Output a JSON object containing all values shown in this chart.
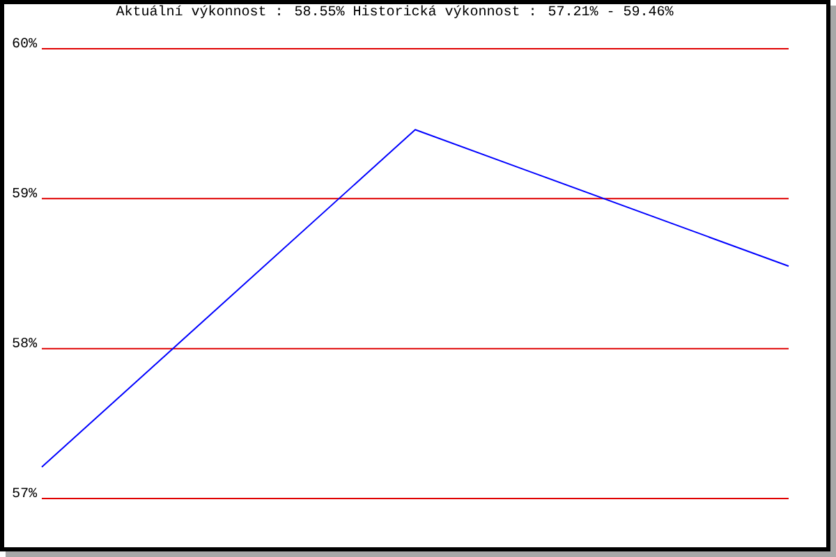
{
  "chart_data": {
    "type": "line",
    "title": "Aktuální výkonnost : 58.55%  Historická výkonnost : 57.21% - 59.46%",
    "categories": [
      null,
      null,
      null
    ],
    "series": [
      {
        "color": "#0000ff",
        "values": [
          57.21,
          59.46,
          58.55
        ]
      }
    ],
    "ylim": [
      57,
      60
    ],
    "yticks": [
      {
        "value": 57,
        "label": "57%"
      },
      {
        "value": 58,
        "label": "58%"
      },
      {
        "value": 59,
        "label": "59%"
      },
      {
        "value": 60,
        "label": "60%"
      }
    ],
    "grid": "y",
    "tick_labels": "y"
  }
}
